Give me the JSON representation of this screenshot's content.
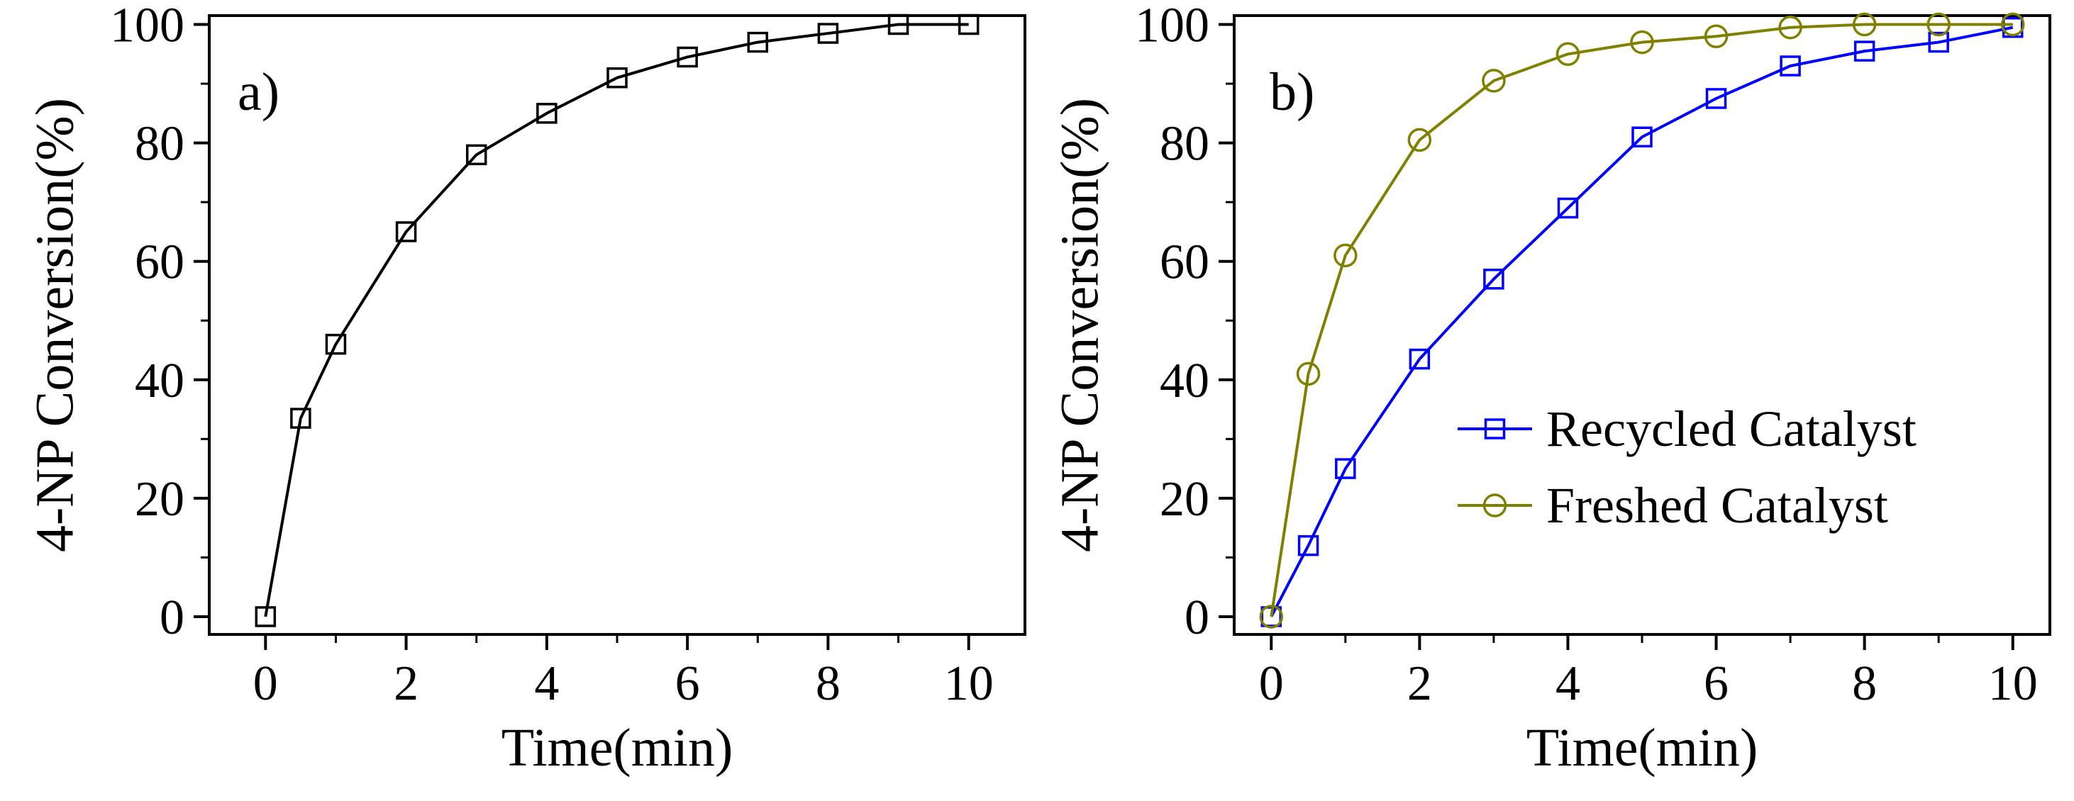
{
  "chart_data": [
    {
      "panel": "a)",
      "type": "line",
      "xlabel": "Time(min)",
      "ylabel": "4-NP Conversion(%)",
      "xlim": [
        -0.8,
        10.8
      ],
      "ylim": [
        -3,
        101.5
      ],
      "xticks": [
        0,
        2,
        4,
        6,
        8,
        10
      ],
      "yticks": [
        0,
        20,
        40,
        60,
        80,
        100
      ],
      "series": [
        {
          "name": "",
          "color": "#000000",
          "marker": "square",
          "x": [
            0,
            0.5,
            1,
            2,
            3,
            4,
            5,
            6,
            7,
            8,
            9,
            10
          ],
          "values": [
            0,
            33.5,
            46,
            65,
            78,
            85,
            91,
            94.5,
            97,
            98.5,
            100,
            100
          ]
        }
      ]
    },
    {
      "panel": "b)",
      "type": "line",
      "xlabel": "Time(min)",
      "ylabel": "4-NP Conversion(%)",
      "xlim": [
        -0.5,
        10.5
      ],
      "ylim": [
        -3,
        101.5
      ],
      "xticks": [
        0,
        2,
        4,
        6,
        8,
        10
      ],
      "yticks": [
        0,
        20,
        40,
        60,
        80,
        100
      ],
      "legend_position": "center-right",
      "series": [
        {
          "name": "Recycled Catalyst",
          "color": "#0000ff",
          "marker": "square",
          "x": [
            0,
            0.5,
            1,
            2,
            3,
            4,
            5,
            6,
            7,
            8,
            9,
            10
          ],
          "values": [
            0,
            12,
            25,
            43.5,
            57,
            69,
            81,
            87.5,
            93,
            95.5,
            97,
            99.5
          ]
        },
        {
          "name": "Freshed Catalyst",
          "color": "#808000",
          "marker": "circle",
          "x": [
            0,
            0.5,
            1,
            2,
            3,
            4,
            5,
            6,
            7,
            8,
            9,
            10
          ],
          "values": [
            0,
            41,
            61,
            80.5,
            90.5,
            95,
            97,
            98,
            99.5,
            100,
            100,
            100
          ]
        }
      ]
    }
  ]
}
